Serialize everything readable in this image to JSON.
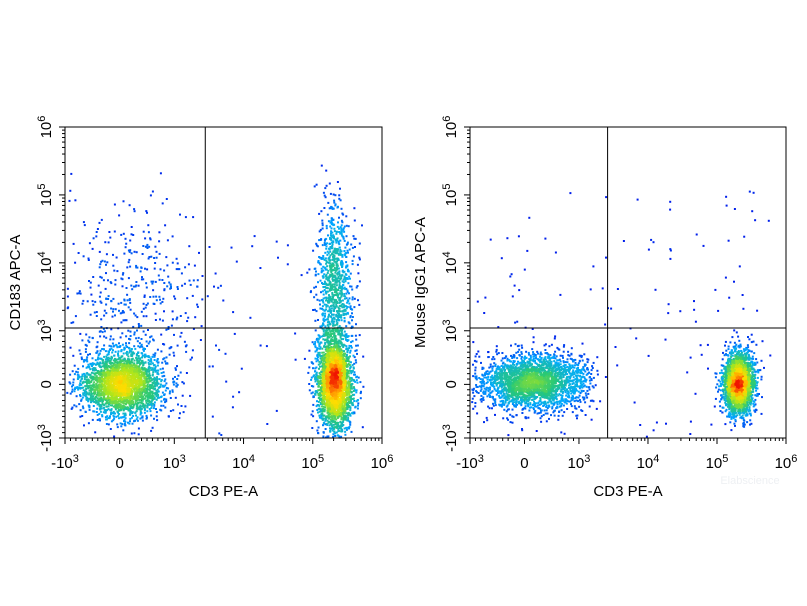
{
  "chart_data": [
    {
      "type": "scatter",
      "subtype": "flow-cytometry-density-dot-plot",
      "xlabel": "CD3 PE-A",
      "ylabel": "CD183 APC-A",
      "x_scale": "biexponential",
      "y_scale": "biexponential",
      "x_ticks": [
        "-10^3",
        "0",
        "10^3",
        "10^4",
        "10^5",
        "10^6"
      ],
      "y_ticks": [
        "-10^3",
        "0",
        "10^3",
        "10^4",
        "10^5",
        "10^6"
      ],
      "xlim": [
        -1000,
        1000000
      ],
      "ylim": [
        -1000,
        1000000
      ],
      "quadrant_gate": {
        "x": 2800,
        "y": 1100
      },
      "color_scale": "density (blue low → red high)",
      "populations": [
        {
          "cx": 30,
          "cy": 20,
          "sx": 380,
          "sy": 300,
          "density": "high"
        },
        {
          "cx": 200,
          "cy": 3000,
          "sx": 0.5,
          "sy": 0.6,
          "density": "low"
        },
        {
          "cx": 200000,
          "cy": 50,
          "sx": 0.12,
          "sy": 420,
          "density": "high"
        },
        {
          "cx": 200000,
          "cy": 5000,
          "sx": 0.12,
          "sy": 0.55,
          "density": "medium"
        }
      ]
    },
    {
      "type": "scatter",
      "subtype": "flow-cytometry-density-dot-plot",
      "xlabel": "CD3 PE-A",
      "ylabel": "Mouse IgG1 APC-A",
      "x_scale": "biexponential",
      "y_scale": "biexponential",
      "x_ticks": [
        "-10^3",
        "0",
        "10^3",
        "10^4",
        "10^5",
        "10^6"
      ],
      "y_ticks": [
        "-10^3",
        "0",
        "10^3",
        "10^4",
        "10^5",
        "10^6"
      ],
      "xlim": [
        -1000,
        1000000
      ],
      "ylim": [
        -1000,
        1000000
      ],
      "quadrant_gate": {
        "x": 2600,
        "y": 1100
      },
      "color_scale": "density (blue low → red high)",
      "populations": [
        {
          "cx": 150,
          "cy": 60,
          "sx": 500,
          "sy": 260,
          "density": "high"
        },
        {
          "cx": 200000,
          "cy": 40,
          "sx": 0.1,
          "sy": 280,
          "density": "high"
        }
      ]
    }
  ],
  "watermark": "Elabscience"
}
